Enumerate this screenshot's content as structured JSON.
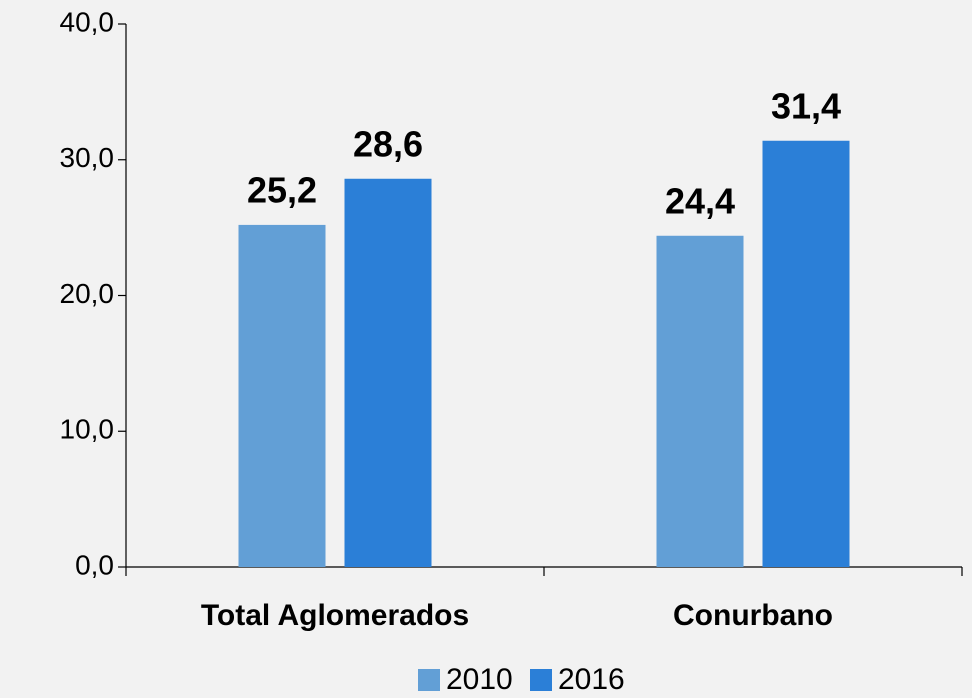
{
  "chart_data": {
    "type": "bar",
    "categories": [
      "Total Aglomerados",
      "Conurbano"
    ],
    "series": [
      {
        "name": "2010",
        "color": "#629fd6",
        "values": [
          25.2,
          24.4
        ],
        "value_labels": [
          "25,2",
          "24,4"
        ]
      },
      {
        "name": "2016",
        "color": "#2b7fd7",
        "values": [
          28.6,
          31.4
        ],
        "value_labels": [
          "28,6",
          "31,4"
        ]
      }
    ],
    "ylim": [
      0,
      40
    ],
    "yticks": [
      {
        "value": 0,
        "label": "0,0"
      },
      {
        "value": 10,
        "label": "10,0"
      },
      {
        "value": 20,
        "label": "20,0"
      },
      {
        "value": 30,
        "label": "30,0"
      },
      {
        "value": 40,
        "label": "40,0"
      }
    ],
    "grid": false,
    "legend": "bottom"
  }
}
